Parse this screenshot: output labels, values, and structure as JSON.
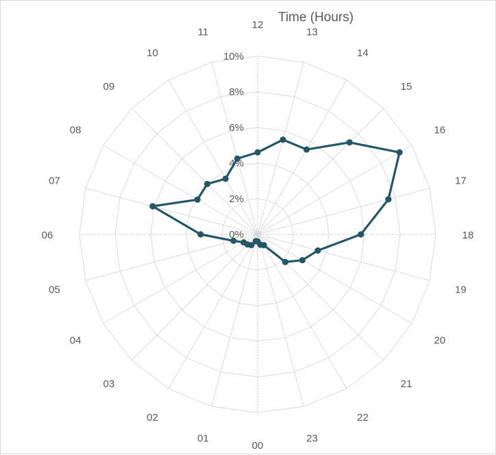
{
  "chart_data": {
    "type": "radar",
    "title": "Time (Hours)",
    "categories": [
      "12",
      "13",
      "14",
      "15",
      "16",
      "17",
      "18",
      "19",
      "20",
      "21",
      "22",
      "23",
      "00",
      "01",
      "02",
      "03",
      "04",
      "05",
      "06",
      "07",
      "08",
      "09",
      "10",
      "11"
    ],
    "radial_ticks": [
      "0%",
      "2%",
      "4%",
      "6%",
      "8%",
      "10%"
    ],
    "rmax": 10,
    "grid": true,
    "series": [
      {
        "values": [
          4.6,
          5.5,
          5.5,
          7.3,
          9.2,
          7.6,
          5.8,
          3.5,
          2.9,
          2.2,
          0.7,
          0.6,
          0.4,
          0.4,
          0.7,
          0.8,
          0.9,
          1.4,
          3.2,
          6.1,
          3.9,
          4.0,
          3.6,
          4.4
        ],
        "color": "#245665"
      }
    ]
  }
}
